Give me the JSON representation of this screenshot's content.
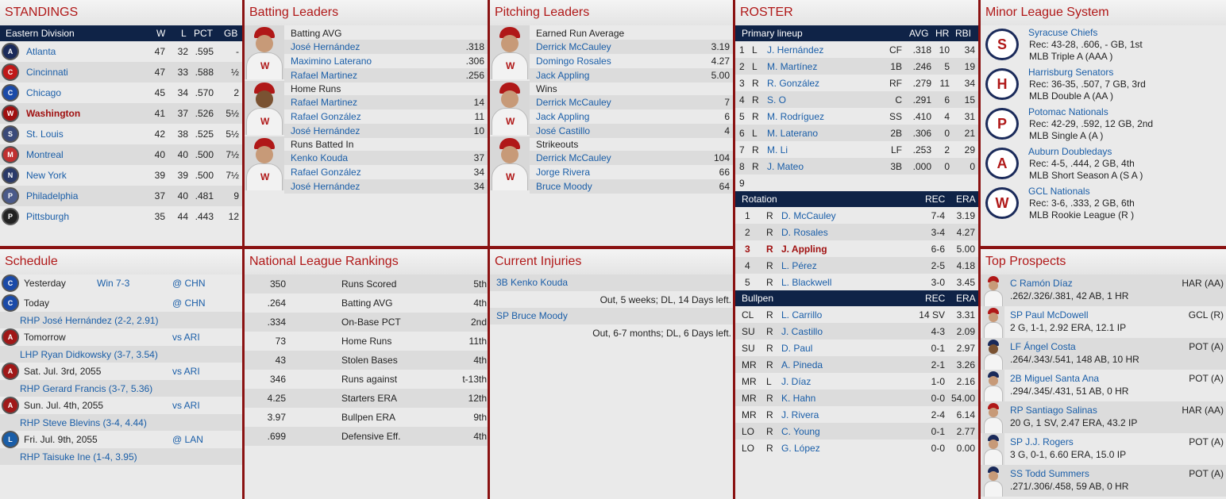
{
  "standings": {
    "title": "STANDINGS",
    "division": "Eastern Division",
    "cols": [
      "W",
      "L",
      "PCT",
      "GB"
    ],
    "teams": [
      {
        "name": "Atlanta",
        "w": "47",
        "l": "32",
        "pct": ".595",
        "gb": "-",
        "logo": "A",
        "color": "#1a2a5a"
      },
      {
        "name": "Cincinnati",
        "w": "47",
        "l": "33",
        "pct": ".588",
        "gb": "½",
        "logo": "C",
        "color": "#c01818"
      },
      {
        "name": "Chicago",
        "w": "45",
        "l": "34",
        "pct": ".570",
        "gb": "2",
        "logo": "C",
        "color": "#1a4aa8"
      },
      {
        "name": "Washington",
        "w": "41",
        "l": "37",
        "pct": ".526",
        "gb": "5½",
        "logo": "W",
        "color": "#a01010",
        "highlight": true
      },
      {
        "name": "St. Louis",
        "w": "42",
        "l": "38",
        "pct": ".525",
        "gb": "5½",
        "logo": "S",
        "color": "#3a4a7a"
      },
      {
        "name": "Montreal",
        "w": "40",
        "l": "40",
        "pct": ".500",
        "gb": "7½",
        "logo": "M",
        "color": "#c03030"
      },
      {
        "name": "New York",
        "w": "39",
        "l": "39",
        "pct": ".500",
        "gb": "7½",
        "logo": "N",
        "color": "#2a3a6a"
      },
      {
        "name": "Philadelphia",
        "w": "37",
        "l": "40",
        "pct": ".481",
        "gb": "9",
        "logo": "P",
        "color": "#4a5a8a"
      },
      {
        "name": "Pittsburgh",
        "w": "35",
        "l": "44",
        "pct": ".443",
        "gb": "12",
        "logo": "P",
        "color": "#222222"
      }
    ]
  },
  "batting": {
    "title": "Batting Leaders",
    "groups": [
      {
        "cat": "Batting AVG",
        "players": [
          {
            "name": "José Hernández",
            "val": ".318"
          },
          {
            "name": "Maximino Laterano",
            "val": ".306"
          },
          {
            "name": "Rafael Martinez",
            "val": ".256"
          }
        ],
        "dark": false
      },
      {
        "cat": "Home Runs",
        "players": [
          {
            "name": "Rafael Martinez",
            "val": "14"
          },
          {
            "name": "Rafael González",
            "val": "11"
          },
          {
            "name": "José Hernández",
            "val": "10"
          }
        ],
        "dark": true
      },
      {
        "cat": "Runs Batted In",
        "players": [
          {
            "name": "Kenko Kouda",
            "val": "37"
          },
          {
            "name": "Rafael González",
            "val": "34"
          },
          {
            "name": "José Hernández",
            "val": "34"
          }
        ],
        "dark": false
      }
    ]
  },
  "pitching": {
    "title": "Pitching Leaders",
    "groups": [
      {
        "cat": "Earned Run Average",
        "players": [
          {
            "name": "Derrick McCauley",
            "val": "3.19"
          },
          {
            "name": "Domingo Rosales",
            "val": "4.27"
          },
          {
            "name": "Jack Appling",
            "val": "5.00"
          }
        ],
        "dark": false
      },
      {
        "cat": "Wins",
        "players": [
          {
            "name": "Derrick McCauley",
            "val": "7"
          },
          {
            "name": "Jack Appling",
            "val": "6"
          },
          {
            "name": "José Castillo",
            "val": "4"
          }
        ],
        "dark": false
      },
      {
        "cat": "Strikeouts",
        "players": [
          {
            "name": "Derrick McCauley",
            "val": "104"
          },
          {
            "name": "Jorge Rivera",
            "val": "66"
          },
          {
            "name": "Bruce Moody",
            "val": "64"
          }
        ],
        "dark": false
      }
    ]
  },
  "roster": {
    "title": "ROSTER",
    "lineup_hdr": {
      "label": "Primary lineup",
      "avg": "AVG",
      "hr": "HR",
      "rbi": "RBI"
    },
    "lineup": [
      {
        "n": "1",
        "b": "L",
        "name": "J. Hernández",
        "pos": "CF",
        "avg": ".318",
        "hr": "10",
        "rbi": "34"
      },
      {
        "n": "2",
        "b": "L",
        "name": "M. Martínez",
        "pos": "1B",
        "avg": ".246",
        "hr": "5",
        "rbi": "19"
      },
      {
        "n": "3",
        "b": "R",
        "name": "R. González",
        "pos": "RF",
        "avg": ".279",
        "hr": "11",
        "rbi": "34"
      },
      {
        "n": "4",
        "b": "R",
        "name": "S. O",
        "pos": "C",
        "avg": ".291",
        "hr": "6",
        "rbi": "15"
      },
      {
        "n": "5",
        "b": "R",
        "name": "M. Rodríguez",
        "pos": "SS",
        "avg": ".410",
        "hr": "4",
        "rbi": "31"
      },
      {
        "n": "6",
        "b": "L",
        "name": "M. Laterano",
        "pos": "2B",
        "avg": ".306",
        "hr": "0",
        "rbi": "21"
      },
      {
        "n": "7",
        "b": "R",
        "name": "M. Li",
        "pos": "LF",
        "avg": ".253",
        "hr": "2",
        "rbi": "29"
      },
      {
        "n": "8",
        "b": "R",
        "name": "J. Mateo",
        "pos": "3B",
        "avg": ".000",
        "hr": "0",
        "rbi": "0"
      },
      {
        "n": "9",
        "b": "",
        "name": "",
        "pos": "",
        "avg": "",
        "hr": "",
        "rbi": ""
      }
    ],
    "rotation_hdr": {
      "label": "Rotation",
      "rec": "REC",
      "era": "ERA"
    },
    "rotation": [
      {
        "n": "1",
        "t": "R",
        "name": "D. McCauley",
        "rec": "7-4",
        "era": "3.19"
      },
      {
        "n": "2",
        "t": "R",
        "name": "D. Rosales",
        "rec": "3-4",
        "era": "4.27"
      },
      {
        "n": "3",
        "t": "R",
        "name": "J. Appling",
        "rec": "6-6",
        "era": "5.00",
        "highlight": true
      },
      {
        "n": "4",
        "t": "R",
        "name": "L. Pérez",
        "rec": "2-5",
        "era": "4.18"
      },
      {
        "n": "5",
        "t": "R",
        "name": "L. Blackwell",
        "rec": "3-0",
        "era": "3.45"
      }
    ],
    "bullpen_hdr": {
      "label": "Bullpen",
      "rec": "REC",
      "era": "ERA"
    },
    "bullpen": [
      {
        "role": "CL",
        "t": "R",
        "name": "L. Carrillo",
        "rec": "14 SV",
        "era": "3.31"
      },
      {
        "role": "SU",
        "t": "R",
        "name": "J. Castillo",
        "rec": "4-3",
        "era": "2.09"
      },
      {
        "role": "SU",
        "t": "R",
        "name": "D. Paul",
        "rec": "0-1",
        "era": "2.97"
      },
      {
        "role": "MR",
        "t": "R",
        "name": "A. Pineda",
        "rec": "2-1",
        "era": "3.26"
      },
      {
        "role": "MR",
        "t": "L",
        "name": "J. Díaz",
        "rec": "1-0",
        "era": "2.16"
      },
      {
        "role": "MR",
        "t": "R",
        "name": "K. Hahn",
        "rec": "0-0",
        "era": "54.00"
      },
      {
        "role": "MR",
        "t": "R",
        "name": "J. Rivera",
        "rec": "2-4",
        "era": "6.14"
      },
      {
        "role": "LO",
        "t": "R",
        "name": "C. Young",
        "rec": "0-1",
        "era": "2.77"
      },
      {
        "role": "LO",
        "t": "R",
        "name": "G. López",
        "rec": "0-0",
        "era": "0.00"
      }
    ]
  },
  "minors": {
    "title": "Minor League System",
    "teams": [
      {
        "name": "Syracuse Chiefs",
        "rec": "Rec: 43-28, .606, - GB, 1st",
        "level": "MLB Triple A (AAA )",
        "logo": "S"
      },
      {
        "name": "Harrisburg Senators",
        "rec": "Rec: 36-35, .507, 7 GB, 3rd",
        "level": "MLB Double A (AA )",
        "logo": "H"
      },
      {
        "name": "Potomac Nationals",
        "rec": "Rec: 42-29, .592, 12 GB, 2nd",
        "level": "MLB Single A (A )",
        "logo": "P"
      },
      {
        "name": "Auburn Doubledays",
        "rec": "Rec: 4-5, .444, 2 GB, 4th",
        "level": "MLB Short Season A (S A )",
        "logo": "A"
      },
      {
        "name": "GCL Nationals",
        "rec": "Rec: 3-6, .333, 2 GB, 6th",
        "level": "MLB Rookie League (R )",
        "logo": "W"
      }
    ]
  },
  "schedule": {
    "title": "Schedule",
    "games": [
      {
        "day": "Yesterday",
        "result": "Win 7-3",
        "opp": "@ CHN",
        "pitcher": "",
        "logo": "C",
        "color": "#1a4aa8"
      },
      {
        "day": "Today",
        "result": "",
        "opp": "@ CHN",
        "pitcher": "RHP José Hernández (2-2, 2.91)",
        "logo": "C",
        "color": "#1a4aa8"
      },
      {
        "day": "Tomorrow",
        "result": "",
        "opp": "vs ARI",
        "pitcher": "LHP Ryan Didkowsky (3-7, 3.54)",
        "logo": "A",
        "color": "#a01818"
      },
      {
        "day": "Sat. Jul. 3rd, 2055",
        "result": "",
        "opp": "vs ARI",
        "pitcher": "RHP Gerard Francis (3-7, 5.36)",
        "logo": "A",
        "color": "#a01818"
      },
      {
        "day": "Sun. Jul. 4th, 2055",
        "result": "",
        "opp": "vs ARI",
        "pitcher": "RHP Steve Blevins (3-4, 4.44)",
        "logo": "A",
        "color": "#a01818"
      },
      {
        "day": "Fri. Jul. 9th, 2055",
        "result": "",
        "opp": "@ LAN",
        "pitcher": "RHP Taisuke Ine (1-4, 3.95)",
        "logo": "L",
        "color": "#1a5ea8"
      }
    ]
  },
  "rankings": {
    "title": "National League Rankings",
    "rows": [
      {
        "val": "350",
        "stat": "Runs Scored",
        "rank": "5th"
      },
      {
        "val": ".264",
        "stat": "Batting AVG",
        "rank": "4th"
      },
      {
        "val": ".334",
        "stat": "On-Base PCT",
        "rank": "2nd"
      },
      {
        "val": "73",
        "stat": "Home Runs",
        "rank": "11th"
      },
      {
        "val": "43",
        "stat": "Stolen Bases",
        "rank": "4th"
      },
      {
        "val": "346",
        "stat": "Runs against",
        "rank": "t-13th"
      },
      {
        "val": "4.25",
        "stat": "Starters ERA",
        "rank": "12th"
      },
      {
        "val": "3.97",
        "stat": "Bullpen ERA",
        "rank": "9th"
      },
      {
        "val": ".699",
        "stat": "Defensive Eff.",
        "rank": "4th"
      }
    ]
  },
  "injuries": {
    "title": "Current Injuries",
    "items": [
      {
        "player": "3B Kenko Kouda",
        "status": "Out, 5 weeks; DL, 14 Days left."
      },
      {
        "player": "SP Bruce Moody",
        "status": "Out, 6-7 months; DL, 6 Days left."
      }
    ]
  },
  "prospects": {
    "title": "Top Prospects",
    "items": [
      {
        "name": "C Ramón Díaz",
        "team": "HAR (AA)",
        "line": ".262/.326/.381, 42 AB, 1 HR",
        "cap": "#b01818",
        "dark": false
      },
      {
        "name": "SP Paul McDowell",
        "team": "GCL (R)",
        "line": "2 G, 1-1, 2.92 ERA, 12.1 IP",
        "cap": "#b01818",
        "dark": false
      },
      {
        "name": "LF Ángel Costa",
        "team": "POT (A)",
        "line": ".264/.343/.541, 148 AB, 10 HR",
        "cap": "#1a2a5a",
        "dark": true
      },
      {
        "name": "2B Miguel Santa Ana",
        "team": "POT (A)",
        "line": ".294/.345/.431, 51 AB, 0 HR",
        "cap": "#1a2a5a",
        "dark": false
      },
      {
        "name": "RP Santiago Salinas",
        "team": "HAR (AA)",
        "line": "20 G, 1 SV, 2.47 ERA, 43.2 IP",
        "cap": "#b01818",
        "dark": false
      },
      {
        "name": "SP J.J. Rogers",
        "team": "POT (A)",
        "line": "3 G, 0-1, 6.60 ERA, 15.0 IP",
        "cap": "#1a2a5a",
        "dark": false
      },
      {
        "name": "SS Todd Summers",
        "team": "POT (A)",
        "line": ".271/.306/.458, 59 AB, 0 HR",
        "cap": "#1a2a5a",
        "dark": false
      }
    ]
  }
}
